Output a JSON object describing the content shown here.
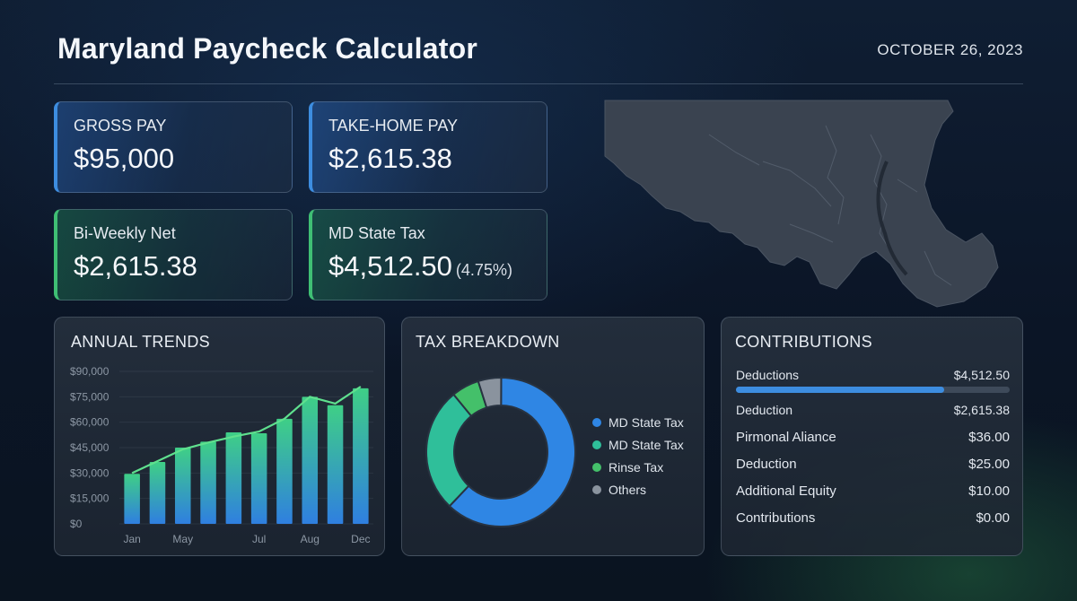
{
  "header": {
    "title": "Maryland Paycheck Calculator",
    "date": "OCTOBER 26, 2023"
  },
  "stats": [
    {
      "label": "GROSS PAY",
      "value": "$95,000",
      "sub": ""
    },
    {
      "label": "TAKE-HOME PAY",
      "value": "$2,615.38",
      "sub": ""
    },
    {
      "label": "Bi-Weekly Net",
      "value": "$2,615.38",
      "sub": ""
    },
    {
      "label": "MD State Tax",
      "value": "$4,512.50",
      "sub": "(4.75%)"
    }
  ],
  "colors": {
    "blue_accent": "#3d8de0",
    "green_accent": "#3fbf74",
    "teal": "#2fbf9a",
    "gray": "#8a939e"
  },
  "trends": {
    "title": "ANNUAL TRENDS",
    "chart_data": {
      "type": "bar",
      "title": "ANNUAL TRENDS",
      "y_ticks": [
        "$90,000",
        "$75,000",
        "$60,000",
        "$45,000",
        "$30,000",
        "$15,000",
        "$0"
      ],
      "ylim": [
        0,
        90000
      ],
      "x_tick_labels": [
        "Jan",
        "May",
        "Jul",
        "Aug",
        "Dec"
      ],
      "values": [
        29500,
        36500,
        45000,
        48500,
        54000,
        53500,
        62000,
        75000,
        70000,
        80000
      ],
      "line_values": [
        30000,
        37000,
        44000,
        48000,
        51500,
        54500,
        62000,
        75000,
        71000,
        81000
      ]
    }
  },
  "tax": {
    "title": "TAX BREAKDOWN",
    "chart_data": {
      "type": "pie",
      "slices": [
        {
          "name": "MD State Tax",
          "value": 62,
          "color": "#2f86e4"
        },
        {
          "name": "MD State Tax",
          "value": 27,
          "color": "#2fbf9a"
        },
        {
          "name": "Rinse Tax",
          "value": 6,
          "color": "#44c06a"
        },
        {
          "name": "Others",
          "value": 5,
          "color": "#8a939e"
        }
      ]
    }
  },
  "contributions": {
    "title": "CONTRIBUTIONS",
    "progress": 0.76,
    "rows": [
      {
        "label": "Deductions",
        "value": "$4,512.50"
      },
      {
        "label": "Deduction",
        "value": "$2,615.38"
      },
      {
        "label": "Pirmonal Aliance",
        "value": "$36.00"
      },
      {
        "label": "Deduction",
        "value": "$25.00"
      },
      {
        "label": "Additional Equity",
        "value": "$10.00"
      },
      {
        "label": "Contributions",
        "value": "$0.00"
      }
    ]
  }
}
